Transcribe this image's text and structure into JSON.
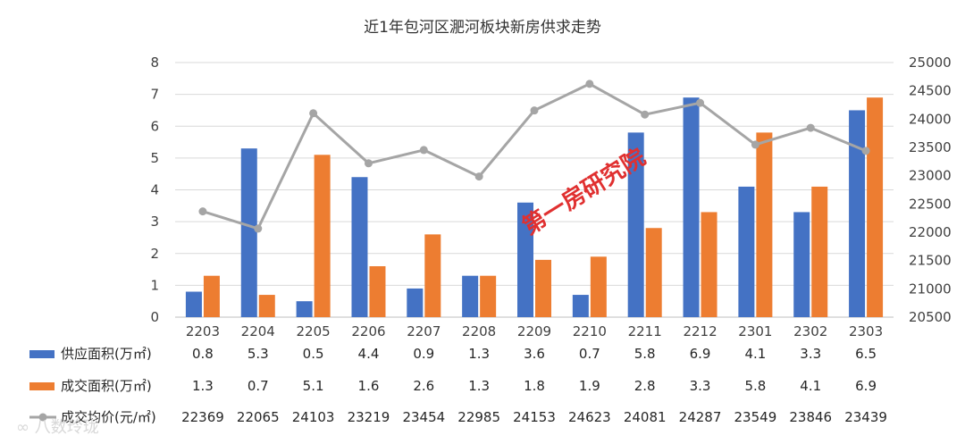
{
  "chart_data": {
    "type": "bar",
    "title": "近1年包河区淝河板块新房供求走势",
    "categories": [
      "2203",
      "2204",
      "2205",
      "2206",
      "2207",
      "2208",
      "2209",
      "2210",
      "2211",
      "2212",
      "2301",
      "2302",
      "2303"
    ],
    "series": [
      {
        "name": "供应面积(万㎡)",
        "type": "bar",
        "axis": "left",
        "color": "#4472C4",
        "values": [
          0.8,
          5.3,
          0.5,
          4.4,
          0.9,
          1.3,
          3.6,
          0.7,
          5.8,
          6.9,
          4.1,
          3.3,
          6.5
        ],
        "labels": [
          "0.8",
          "5.3",
          "0.5",
          "4.4",
          "0.9",
          "1.3",
          "3.6",
          "0.7",
          "5.8",
          "6.9",
          "4.1",
          "3.3",
          "6.5"
        ]
      },
      {
        "name": "成交面积(万㎡)",
        "type": "bar",
        "axis": "left",
        "color": "#ED7D31",
        "values": [
          1.3,
          0.7,
          5.1,
          1.6,
          2.6,
          1.3,
          1.8,
          1.9,
          2.8,
          3.3,
          5.8,
          4.1,
          6.9
        ],
        "labels": [
          "1.3",
          "0.7",
          "5.1",
          "1.6",
          "2.6",
          "1.3",
          "1.8",
          "1.9",
          "2.8",
          "3.3",
          "5.8",
          "4.1",
          "6.9"
        ]
      },
      {
        "name": "成交均价(元/㎡)",
        "type": "line",
        "axis": "right",
        "color": "#A5A5A5",
        "values": [
          22369,
          22065,
          24103,
          23219,
          23454,
          22985,
          24153,
          24623,
          24081,
          24287,
          23549,
          23846,
          23439
        ],
        "labels": [
          "22369",
          "22065",
          "24103",
          "23219",
          "23454",
          "22985",
          "24153",
          "24623",
          "24081",
          "24287",
          "23549",
          "23846",
          "23439"
        ]
      }
    ],
    "ylim_left": [
      0,
      8
    ],
    "yticks_left": [
      "0",
      "1",
      "2",
      "3",
      "4",
      "5",
      "6",
      "7",
      "8"
    ],
    "ylim_right": [
      20500,
      25000
    ],
    "yticks_right": [
      "20500",
      "21000",
      "21500",
      "22000",
      "22500",
      "23000",
      "23500",
      "24000",
      "24500",
      "25000"
    ],
    "grid": true,
    "legend": "data-table"
  },
  "watermark": "第一房研究院",
  "brand": "∞ 八数玲珑"
}
